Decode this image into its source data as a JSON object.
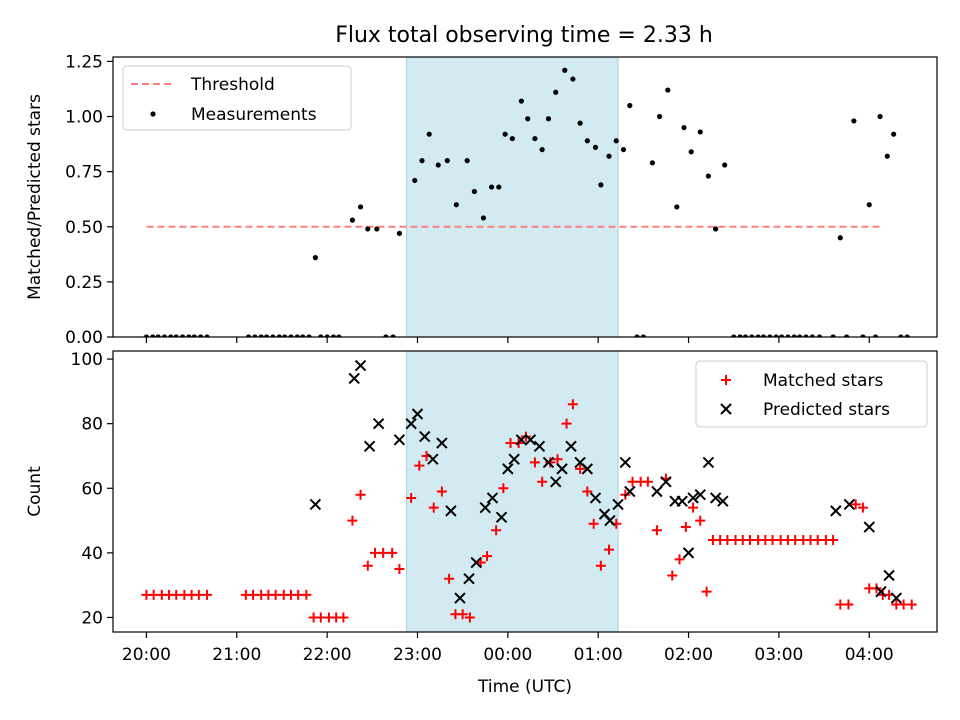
{
  "figure": {
    "title": "Flux total observing time = 2.33 h"
  },
  "chart_data": [
    {
      "type": "scatter",
      "panel": "top",
      "ylabel": "Matched/Predicted stars",
      "xlabel": "",
      "xlim_hours": [
        19.63,
        28.75
      ],
      "ylim": [
        0,
        1.27
      ],
      "yticks": [
        0.0,
        0.25,
        0.5,
        0.75,
        1.0,
        1.25
      ],
      "ytick_labels": [
        "0.00",
        "0.25",
        "0.50",
        "0.75",
        "1.00",
        "1.25"
      ],
      "shaded_span_hours": [
        22.88,
        25.22
      ],
      "shaded_color": "#add8e6",
      "legend_position": "top-left",
      "threshold": {
        "name": "Threshold",
        "value": 0.5,
        "x_range_hours": [
          20.0,
          28.13
        ],
        "color": "#ff7f7f"
      },
      "measurements": {
        "name": "Measurements",
        "color": "#000000",
        "points": [
          [
            20.0,
            0
          ],
          [
            20.07,
            0
          ],
          [
            20.13,
            0
          ],
          [
            20.2,
            0
          ],
          [
            20.27,
            0
          ],
          [
            20.33,
            0
          ],
          [
            20.4,
            0
          ],
          [
            20.47,
            0
          ],
          [
            20.53,
            0
          ],
          [
            20.6,
            0
          ],
          [
            20.67,
            0
          ],
          [
            21.13,
            0
          ],
          [
            21.2,
            0
          ],
          [
            21.27,
            0
          ],
          [
            21.33,
            0
          ],
          [
            21.4,
            0
          ],
          [
            21.47,
            0
          ],
          [
            21.53,
            0
          ],
          [
            21.6,
            0
          ],
          [
            21.67,
            0
          ],
          [
            21.73,
            0
          ],
          [
            21.8,
            0
          ],
          [
            21.87,
            0.36
          ],
          [
            21.93,
            0
          ],
          [
            22.0,
            0
          ],
          [
            22.07,
            0
          ],
          [
            22.13,
            0
          ],
          [
            22.28,
            0.53
          ],
          [
            22.37,
            0.59
          ],
          [
            22.45,
            0.49
          ],
          [
            22.55,
            0.49
          ],
          [
            22.65,
            0
          ],
          [
            22.73,
            0
          ],
          [
            22.8,
            0.47
          ],
          [
            22.97,
            0.71
          ],
          [
            23.05,
            0.8
          ],
          [
            23.13,
            0.92
          ],
          [
            23.23,
            0.78
          ],
          [
            23.33,
            0.8
          ],
          [
            23.43,
            0.6
          ],
          [
            23.55,
            0.8
          ],
          [
            23.63,
            0.66
          ],
          [
            23.73,
            0.54
          ],
          [
            23.82,
            0.68
          ],
          [
            23.9,
            0.68
          ],
          [
            23.97,
            0.92
          ],
          [
            24.05,
            0.9
          ],
          [
            24.15,
            1.07
          ],
          [
            24.22,
            0.99
          ],
          [
            24.3,
            0.9
          ],
          [
            24.38,
            0.85
          ],
          [
            24.45,
            0.99
          ],
          [
            24.53,
            1.11
          ],
          [
            24.63,
            1.21
          ],
          [
            24.72,
            1.17
          ],
          [
            24.8,
            0.97
          ],
          [
            24.88,
            0.89
          ],
          [
            24.97,
            0.86
          ],
          [
            25.03,
            0.69
          ],
          [
            25.12,
            0.82
          ],
          [
            25.2,
            0.89
          ],
          [
            25.28,
            0.85
          ],
          [
            25.35,
            1.05
          ],
          [
            25.43,
            0
          ],
          [
            25.5,
            0
          ],
          [
            25.6,
            0.79
          ],
          [
            25.68,
            1.0
          ],
          [
            25.77,
            1.12
          ],
          [
            25.87,
            0.59
          ],
          [
            25.95,
            0.95
          ],
          [
            26.03,
            0.84
          ],
          [
            26.13,
            0.93
          ],
          [
            26.22,
            0.73
          ],
          [
            26.3,
            0.49
          ],
          [
            26.4,
            0.78
          ],
          [
            26.5,
            0
          ],
          [
            26.57,
            0
          ],
          [
            26.63,
            0
          ],
          [
            26.7,
            0
          ],
          [
            26.77,
            0
          ],
          [
            26.83,
            0
          ],
          [
            26.9,
            0
          ],
          [
            26.97,
            0
          ],
          [
            27.03,
            0
          ],
          [
            27.1,
            0
          ],
          [
            27.17,
            0
          ],
          [
            27.23,
            0
          ],
          [
            27.3,
            0
          ],
          [
            27.37,
            0
          ],
          [
            27.45,
            0
          ],
          [
            27.6,
            0
          ],
          [
            27.68,
            0.45
          ],
          [
            27.75,
            0
          ],
          [
            27.83,
            0.98
          ],
          [
            27.93,
            0
          ],
          [
            28.0,
            0.6
          ],
          [
            28.07,
            0
          ],
          [
            28.12,
            1.0
          ],
          [
            28.2,
            0.82
          ],
          [
            28.27,
            0.92
          ],
          [
            28.35,
            0
          ],
          [
            28.42,
            0
          ]
        ]
      }
    },
    {
      "type": "scatter",
      "panel": "bottom",
      "ylabel": "Count",
      "xlabel": "Time (UTC)",
      "xlim_hours": [
        19.63,
        28.75
      ],
      "ylim": [
        15.5,
        102.5
      ],
      "yticks": [
        20,
        40,
        60,
        80,
        100
      ],
      "ytick_labels": [
        "20",
        "40",
        "60",
        "80",
        "100"
      ],
      "xticks_hours": [
        20,
        21,
        22,
        23,
        24,
        25,
        26,
        27,
        28
      ],
      "xtick_labels": [
        "20:00",
        "21:00",
        "22:00",
        "23:00",
        "00:00",
        "01:00",
        "02:00",
        "03:00",
        "04:00"
      ],
      "shaded_span_hours": [
        22.88,
        25.22
      ],
      "shaded_color": "#add8e6",
      "legend_position": "top-right",
      "series": [
        {
          "name": "Matched stars",
          "marker": "plus",
          "color": "#ff0000",
          "points": [
            [
              20.0,
              27
            ],
            [
              20.08,
              27
            ],
            [
              20.17,
              27
            ],
            [
              20.25,
              27
            ],
            [
              20.33,
              27
            ],
            [
              20.42,
              27
            ],
            [
              20.5,
              27
            ],
            [
              20.58,
              27
            ],
            [
              20.67,
              27
            ],
            [
              21.1,
              27
            ],
            [
              21.18,
              27
            ],
            [
              21.27,
              27
            ],
            [
              21.35,
              27
            ],
            [
              21.43,
              27
            ],
            [
              21.52,
              27
            ],
            [
              21.6,
              27
            ],
            [
              21.68,
              27
            ],
            [
              21.77,
              27
            ],
            [
              21.85,
              20
            ],
            [
              21.93,
              20
            ],
            [
              22.02,
              20
            ],
            [
              22.1,
              20
            ],
            [
              22.18,
              20
            ],
            [
              22.28,
              50
            ],
            [
              22.37,
              58
            ],
            [
              22.45,
              36
            ],
            [
              22.53,
              40
            ],
            [
              22.62,
              40
            ],
            [
              22.72,
              40
            ],
            [
              22.8,
              35
            ],
            [
              22.93,
              57
            ],
            [
              23.02,
              67
            ],
            [
              23.1,
              70
            ],
            [
              23.18,
              54
            ],
            [
              23.27,
              59
            ],
            [
              23.35,
              32
            ],
            [
              23.42,
              21
            ],
            [
              23.5,
              21
            ],
            [
              23.58,
              20
            ],
            [
              23.7,
              37
            ],
            [
              23.77,
              39
            ],
            [
              23.87,
              47
            ],
            [
              23.95,
              60
            ],
            [
              24.03,
              74
            ],
            [
              24.12,
              74
            ],
            [
              24.2,
              76
            ],
            [
              24.3,
              68
            ],
            [
              24.38,
              62
            ],
            [
              24.47,
              68
            ],
            [
              24.55,
              69
            ],
            [
              24.65,
              80
            ],
            [
              24.72,
              86
            ],
            [
              24.8,
              66
            ],
            [
              24.88,
              59
            ],
            [
              24.95,
              49
            ],
            [
              25.03,
              36
            ],
            [
              25.12,
              41
            ],
            [
              25.2,
              49
            ],
            [
              25.3,
              58
            ],
            [
              25.38,
              62
            ],
            [
              25.47,
              62
            ],
            [
              25.55,
              62
            ],
            [
              25.65,
              47
            ],
            [
              25.75,
              63
            ],
            [
              25.82,
              33
            ],
            [
              25.9,
              38
            ],
            [
              25.97,
              48
            ],
            [
              26.05,
              54
            ],
            [
              26.13,
              50
            ],
            [
              26.2,
              28
            ],
            [
              26.27,
              44
            ],
            [
              26.35,
              44
            ],
            [
              26.43,
              44
            ],
            [
              26.52,
              44
            ],
            [
              26.6,
              44
            ],
            [
              26.68,
              44
            ],
            [
              26.77,
              44
            ],
            [
              26.85,
              44
            ],
            [
              26.93,
              44
            ],
            [
              27.02,
              44
            ],
            [
              27.1,
              44
            ],
            [
              27.18,
              44
            ],
            [
              27.27,
              44
            ],
            [
              27.35,
              44
            ],
            [
              27.43,
              44
            ],
            [
              27.52,
              44
            ],
            [
              27.6,
              44
            ],
            [
              27.68,
              24
            ],
            [
              27.77,
              24
            ],
            [
              27.85,
              55
            ],
            [
              27.93,
              54
            ],
            [
              28.0,
              29
            ],
            [
              28.08,
              29
            ],
            [
              28.15,
              27
            ],
            [
              28.22,
              27
            ],
            [
              28.3,
              24
            ],
            [
              28.38,
              24
            ],
            [
              28.47,
              24
            ]
          ]
        },
        {
          "name": "Predicted stars",
          "marker": "x",
          "color": "#000000",
          "points": [
            [
              21.87,
              55
            ],
            [
              22.3,
              94
            ],
            [
              22.37,
              98
            ],
            [
              22.47,
              73
            ],
            [
              22.57,
              80
            ],
            [
              22.8,
              75
            ],
            [
              22.93,
              80
            ],
            [
              23.0,
              83
            ],
            [
              23.08,
              76
            ],
            [
              23.17,
              69
            ],
            [
              23.27,
              74
            ],
            [
              23.37,
              53
            ],
            [
              23.47,
              26
            ],
            [
              23.57,
              32
            ],
            [
              23.65,
              37
            ],
            [
              23.75,
              54
            ],
            [
              23.83,
              57
            ],
            [
              23.93,
              51
            ],
            [
              24.0,
              66
            ],
            [
              24.07,
              69
            ],
            [
              24.15,
              75
            ],
            [
              24.25,
              75
            ],
            [
              24.35,
              73
            ],
            [
              24.45,
              68
            ],
            [
              24.53,
              62
            ],
            [
              24.6,
              66
            ],
            [
              24.7,
              73
            ],
            [
              24.8,
              68
            ],
            [
              24.88,
              66
            ],
            [
              24.97,
              57
            ],
            [
              25.07,
              52
            ],
            [
              25.13,
              50
            ],
            [
              25.22,
              55
            ],
            [
              25.3,
              68
            ],
            [
              25.35,
              59
            ],
            [
              25.65,
              59
            ],
            [
              25.75,
              62
            ],
            [
              25.85,
              56
            ],
            [
              25.93,
              56
            ],
            [
              26.05,
              57
            ],
            [
              26.13,
              58
            ],
            [
              26.22,
              68
            ],
            [
              26.3,
              57
            ],
            [
              26.38,
              56
            ],
            [
              27.63,
              53
            ],
            [
              27.78,
              55
            ],
            [
              28.0,
              48
            ],
            [
              28.13,
              28
            ],
            [
              28.22,
              33
            ],
            [
              28.3,
              26
            ],
            [
              26.0,
              40
            ]
          ]
        }
      ]
    }
  ]
}
